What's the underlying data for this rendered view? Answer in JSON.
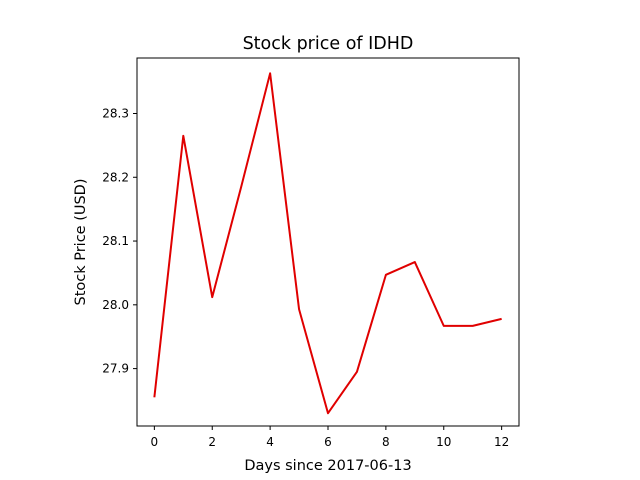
{
  "chart_data": {
    "type": "line",
    "title": "Stock price of IDHD",
    "xlabel": "Days since 2017-06-13",
    "ylabel": "Stock Price (USD)",
    "x": [
      0,
      1,
      2,
      3,
      4,
      5,
      6,
      7,
      8,
      9,
      10,
      11,
      12
    ],
    "series": [
      {
        "values": [
          27.855,
          28.265,
          28.012,
          28.185,
          28.363,
          27.993,
          27.83,
          27.895,
          28.047,
          28.067,
          27.967,
          27.967,
          27.978
        ]
      }
    ],
    "xlim": [
      -0.6,
      12.6
    ],
    "ylim": [
      27.81,
      28.387
    ],
    "xticks": [
      "0",
      "2",
      "4",
      "6",
      "8",
      "10",
      "12"
    ],
    "yticks": [
      "27.9",
      "28.0",
      "28.1",
      "28.2",
      "28.3"
    ],
    "grid": false,
    "colors": {
      "line": "#e00000",
      "axes": "#000000",
      "background": "#ffffff"
    }
  }
}
